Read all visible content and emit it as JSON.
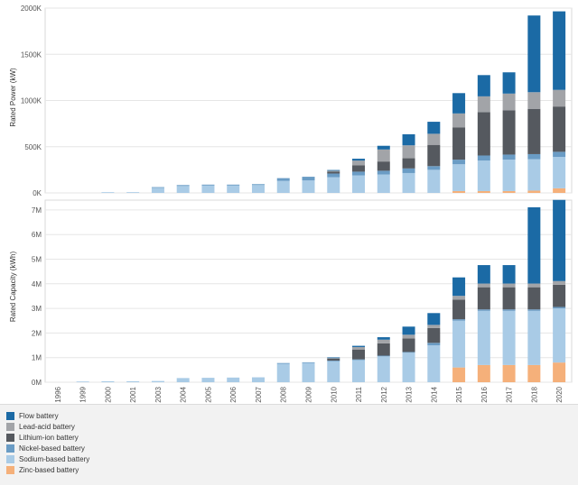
{
  "chart_data": [
    {
      "type": "bar",
      "stacked": true,
      "ylabel": "Rated Power (kW)",
      "ylim": [
        0,
        2000000
      ],
      "yticks": [
        "0K",
        "500K",
        "1000K",
        "1500K",
        "2000K"
      ],
      "grid": "horizontal",
      "categories": [
        "1996",
        "1999",
        "2000",
        "2001",
        "2003",
        "2004",
        "2005",
        "2006",
        "2007",
        "2008",
        "2009",
        "2010",
        "2011",
        "2012",
        "2013",
        "2014",
        "2015",
        "2016",
        "2017",
        "2018",
        "2020"
      ],
      "series": [
        {
          "name": "Zinc-based battery",
          "color": "#f5b07a",
          "values": [
            0,
            0,
            0,
            0,
            0,
            0,
            0,
            0,
            0,
            0,
            0,
            0,
            0,
            0,
            0,
            0,
            20000,
            20000,
            20000,
            25000,
            50000
          ]
        },
        {
          "name": "Sodium-based battery",
          "color": "#a9cbe6",
          "values": [
            0,
            0,
            3000,
            8000,
            55000,
            75000,
            80000,
            80000,
            85000,
            130000,
            135000,
            170000,
            190000,
            200000,
            215000,
            250000,
            290000,
            330000,
            340000,
            340000,
            340000
          ]
        },
        {
          "name": "Nickel-based battery",
          "color": "#6a9cc5",
          "values": [
            0,
            0,
            0,
            0,
            5000,
            10000,
            10000,
            10000,
            10000,
            30000,
            40000,
            40000,
            40000,
            40000,
            50000,
            40000,
            50000,
            55000,
            55000,
            55000,
            55000
          ]
        },
        {
          "name": "Lithium-ion battery",
          "color": "#55595f",
          "values": [
            0,
            0,
            0,
            0,
            0,
            0,
            0,
            0,
            0,
            0,
            0,
            20000,
            70000,
            100000,
            110000,
            230000,
            350000,
            470000,
            480000,
            490000,
            490000
          ]
        },
        {
          "name": "Lead-acid battery",
          "color": "#a2a4a8",
          "values": [
            0,
            0,
            0,
            0,
            0,
            0,
            0,
            0,
            0,
            0,
            0,
            10000,
            50000,
            130000,
            140000,
            120000,
            150000,
            170000,
            180000,
            180000,
            180000
          ]
        },
        {
          "name": "Flow battery",
          "color": "#1b6aa5",
          "values": [
            0,
            0,
            0,
            0,
            0,
            0,
            0,
            0,
            0,
            0,
            0,
            5000,
            20000,
            40000,
            120000,
            130000,
            220000,
            230000,
            230000,
            830000,
            850000
          ]
        }
      ]
    },
    {
      "type": "bar",
      "stacked": true,
      "ylabel": "Rated Capacity (kWh)",
      "ylim": [
        0,
        7400000
      ],
      "yticks": [
        "0M",
        "1M",
        "2M",
        "3M",
        "4M",
        "5M",
        "6M",
        "7M"
      ],
      "grid": "horizontal",
      "categories": [
        "1996",
        "1999",
        "2000",
        "2001",
        "2003",
        "2004",
        "2005",
        "2006",
        "2007",
        "2008",
        "2009",
        "2010",
        "2011",
        "2012",
        "2013",
        "2014",
        "2015",
        "2016",
        "2017",
        "2018",
        "2020"
      ],
      "series": [
        {
          "name": "Zinc-based battery",
          "color": "#f5b07a",
          "values": [
            0,
            0,
            0,
            0,
            0,
            0,
            0,
            0,
            0,
            0,
            0,
            0,
            0,
            0,
            0,
            0,
            600000,
            700000,
            700000,
            700000,
            800000
          ]
        },
        {
          "name": "Sodium-based battery",
          "color": "#a9cbe6",
          "values": [
            0,
            20000,
            40000,
            40000,
            50000,
            170000,
            180000,
            190000,
            200000,
            750000,
            780000,
            850000,
            900000,
            1050000,
            1200000,
            1500000,
            1900000,
            2200000,
            2200000,
            2200000,
            2200000
          ]
        },
        {
          "name": "Nickel-based battery",
          "color": "#6a9cc5",
          "values": [
            0,
            0,
            0,
            0,
            0,
            0,
            0,
            0,
            0,
            30000,
            30000,
            30000,
            30000,
            30000,
            30000,
            100000,
            60000,
            60000,
            60000,
            60000,
            60000
          ]
        },
        {
          "name": "Lithium-ion battery",
          "color": "#55595f",
          "values": [
            0,
            0,
            0,
            0,
            0,
            0,
            0,
            0,
            0,
            0,
            0,
            80000,
            400000,
            500000,
            550000,
            600000,
            800000,
            900000,
            900000,
            900000,
            900000
          ]
        },
        {
          "name": "Lead-acid battery",
          "color": "#a2a4a8",
          "values": [
            0,
            0,
            0,
            0,
            0,
            0,
            0,
            0,
            0,
            0,
            0,
            20000,
            100000,
            150000,
            150000,
            130000,
            150000,
            150000,
            150000,
            150000,
            150000
          ]
        },
        {
          "name": "Flow battery",
          "color": "#1b6aa5",
          "values": [
            0,
            0,
            0,
            0,
            0,
            0,
            0,
            0,
            0,
            0,
            0,
            10000,
            50000,
            100000,
            330000,
            480000,
            750000,
            750000,
            750000,
            3100000,
            3300000
          ]
        }
      ]
    }
  ],
  "legend": [
    {
      "label": "Flow battery",
      "color": "#1b6aa5"
    },
    {
      "label": "Lead-acid battery",
      "color": "#a2a4a8"
    },
    {
      "label": "Lithium-ion battery",
      "color": "#55595f"
    },
    {
      "label": "Nickel-based battery",
      "color": "#6a9cc5"
    },
    {
      "label": "Sodium-based battery",
      "color": "#a9cbe6"
    },
    {
      "label": "Zinc-based battery",
      "color": "#f5b07a"
    }
  ]
}
